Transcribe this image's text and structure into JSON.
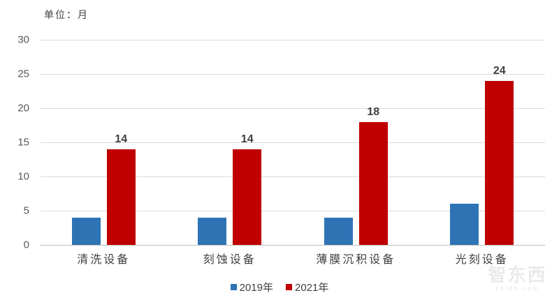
{
  "unit_label": "单位：月",
  "watermark": {
    "logo": "智东西",
    "sub": "zhidx.com"
  },
  "colors": {
    "series_2019": "#2e74b5",
    "series_2021": "#c00000",
    "gridline": "#d9d9d9",
    "axis_line": "#bfbfbf",
    "tick_text": "#595959",
    "label_text": "#404040"
  },
  "chart_data": {
    "type": "bar",
    "title": "",
    "unit": "单位：月",
    "categories": [
      "清洗设备",
      "刻蚀设备",
      "薄膜沉积设备",
      "光刻设备"
    ],
    "series": [
      {
        "name": "2019年",
        "values": [
          4,
          4,
          4,
          6
        ],
        "color": "#2e74b5",
        "show_value_labels": false
      },
      {
        "name": "2021年",
        "values": [
          14,
          14,
          18,
          24
        ],
        "color": "#c00000",
        "show_value_labels": true
      }
    ],
    "ylabel": "",
    "xlabel": "",
    "ylim": [
      0,
      30
    ],
    "ytick_step": 5,
    "grid": true,
    "legend_position": "bottom"
  }
}
